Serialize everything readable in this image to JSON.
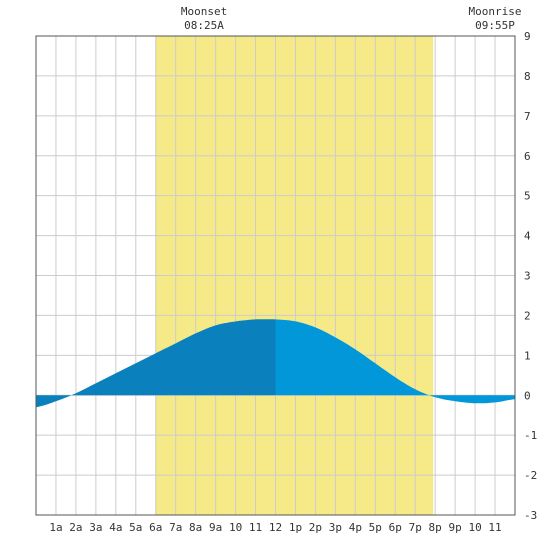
{
  "chart_data": {
    "type": "area",
    "x_unit": "hour of day",
    "xlim": [
      0,
      24
    ],
    "ylim": [
      -3,
      9
    ],
    "y_ticks": [
      -3,
      -2,
      -1,
      0,
      1,
      2,
      3,
      4,
      5,
      6,
      7,
      8,
      9
    ],
    "x_ticks": [
      {
        "x": 1,
        "label": "1a"
      },
      {
        "x": 2,
        "label": "2a"
      },
      {
        "x": 3,
        "label": "3a"
      },
      {
        "x": 4,
        "label": "4a"
      },
      {
        "x": 5,
        "label": "5a"
      },
      {
        "x": 6,
        "label": "6a"
      },
      {
        "x": 7,
        "label": "7a"
      },
      {
        "x": 8,
        "label": "8a"
      },
      {
        "x": 9,
        "label": "9a"
      },
      {
        "x": 10,
        "label": "10"
      },
      {
        "x": 11,
        "label": "11"
      },
      {
        "x": 12,
        "label": "12"
      },
      {
        "x": 13,
        "label": "1p"
      },
      {
        "x": 14,
        "label": "2p"
      },
      {
        "x": 15,
        "label": "3p"
      },
      {
        "x": 16,
        "label": "4p"
      },
      {
        "x": 17,
        "label": "5p"
      },
      {
        "x": 18,
        "label": "6p"
      },
      {
        "x": 19,
        "label": "7p"
      },
      {
        "x": 20,
        "label": "8p"
      },
      {
        "x": 21,
        "label": "9p"
      },
      {
        "x": 22,
        "label": "10"
      },
      {
        "x": 23,
        "label": "11"
      }
    ],
    "grid": true,
    "daylight": {
      "start": 6.0,
      "end": 19.9
    },
    "tide": {
      "x": [
        0,
        1,
        2,
        3,
        4,
        5,
        6,
        7,
        8,
        9,
        10,
        11,
        12,
        13,
        14,
        15,
        16,
        17,
        18,
        19,
        20,
        21,
        22,
        23,
        24
      ],
      "y": [
        -0.3,
        -0.15,
        0.05,
        0.3,
        0.55,
        0.8,
        1.05,
        1.3,
        1.55,
        1.75,
        1.85,
        1.9,
        1.9,
        1.85,
        1.7,
        1.45,
        1.15,
        0.8,
        0.45,
        0.15,
        -0.05,
        -0.15,
        -0.2,
        -0.18,
        -0.1
      ],
      "peak_x": 12.0
    },
    "annotations": [
      {
        "label": "Moonset",
        "time": "08:25A",
        "x": 8.42
      },
      {
        "label": "Moonrise",
        "time": "09:55P",
        "x": 23.0
      }
    ]
  },
  "colors": {
    "background": "#ffffff",
    "daylight": "#f5ea87",
    "grid": "#cccccc",
    "rising": "#0a81bd",
    "falling": "#0297d8",
    "text": "#333333",
    "frame": "#555555"
  }
}
